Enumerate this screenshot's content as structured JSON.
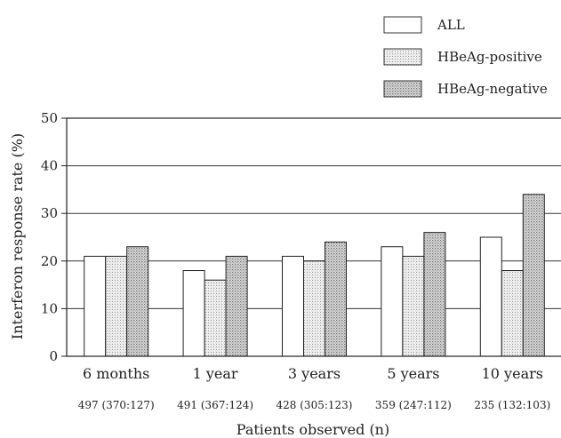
{
  "chart_data": {
    "type": "bar",
    "title": "",
    "xlabel": "Patients observed (n)",
    "ylabel": "Interferon response rate (%)",
    "ylim": [
      0,
      50
    ],
    "yticks": [
      "0",
      "10",
      "20",
      "30",
      "40",
      "50"
    ],
    "categories": [
      "6 months",
      "1 year",
      "3 years",
      "5 years",
      "10 years"
    ],
    "patients_observed": [
      "497 (370:127)",
      "491 (367:124)",
      "428 (305:123)",
      "359 (247:112)",
      "235 (132:103)"
    ],
    "series": [
      {
        "name": "ALL",
        "values": [
          21,
          18,
          21,
          23,
          25
        ],
        "fill": "#ffffff"
      },
      {
        "name": "HBeAg-positive",
        "values": [
          21,
          16,
          20,
          21,
          18
        ],
        "fill": "#e2e2e2"
      },
      {
        "name": "HBeAg-negative",
        "values": [
          23,
          21,
          24,
          26,
          34
        ],
        "fill": "#c9c9c9"
      }
    ],
    "grid": true,
    "legend_position": "top-right"
  }
}
